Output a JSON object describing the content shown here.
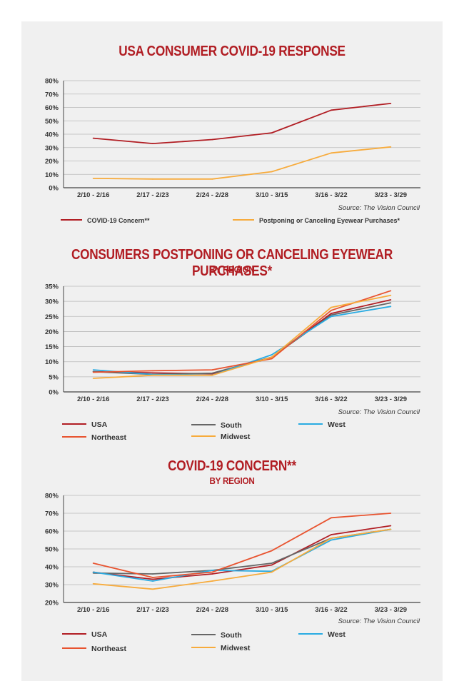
{
  "chart_data": [
    {
      "type": "line",
      "title": "USA CONSUMER COVID-19 RESPONSE",
      "categories": [
        "2/10 - 2/16",
        "2/17 - 2/23",
        "2/24 - 2/28",
        "3/10 - 3/15",
        "3/16 - 3/22",
        "3/23 - 3/29"
      ],
      "ylim": [
        0,
        80
      ],
      "yticks": [
        "0%",
        "10%",
        "20%",
        "30%",
        "40%",
        "50%",
        "60%",
        "70%",
        "80%"
      ],
      "ytick_values": [
        0,
        10,
        20,
        30,
        40,
        50,
        60,
        70,
        80
      ],
      "grid": true,
      "source": "Source: The Vision Council",
      "series": [
        {
          "name": "COVID-19 Concern**",
          "color": "#b11d23",
          "values": [
            37,
            33,
            36,
            41,
            58,
            63
          ]
        },
        {
          "name": "Postponing or Canceling Eyewear Purchases*",
          "color": "#f7ab3c",
          "values": [
            7,
            6.5,
            6.5,
            12,
            26,
            30.5
          ]
        }
      ]
    },
    {
      "type": "line",
      "title": "CONSUMERS POSTPONING OR CANCELING EYEWEAR PURCHASES*",
      "subtitle": "BY REGION",
      "categories": [
        "2/10 - 2/16",
        "2/17 - 2/23",
        "2/24 - 2/28",
        "3/10 - 3/15",
        "3/16 - 3/22",
        "3/23 - 3/29"
      ],
      "ylim": [
        0,
        35
      ],
      "yticks": [
        "0%",
        "5%",
        "10%",
        "15%",
        "20%",
        "25%",
        "30%",
        "35%"
      ],
      "ytick_values": [
        0,
        5,
        10,
        15,
        20,
        25,
        30,
        35
      ],
      "grid": true,
      "source": "Source: The Vision Council",
      "series": [
        {
          "name": "USA",
          "color": "#b11d23",
          "values": [
            6.7,
            6.3,
            6.0,
            11.5,
            26.0,
            30.5
          ]
        },
        {
          "name": "South",
          "color": "#666666",
          "values": [
            6.7,
            5.8,
            6.2,
            11.5,
            25.5,
            29.5
          ]
        },
        {
          "name": "West",
          "color": "#29abe2",
          "values": [
            7.3,
            5.8,
            5.5,
            12.3,
            25.0,
            28.3
          ]
        },
        {
          "name": "Northeast",
          "color": "#e8532f",
          "values": [
            6.5,
            7.0,
            7.3,
            11.0,
            27.0,
            33.5
          ]
        },
        {
          "name": "Midwest",
          "color": "#f7ab3c",
          "values": [
            4.5,
            5.5,
            5.5,
            11.5,
            28.0,
            32.0
          ]
        }
      ]
    },
    {
      "type": "line",
      "title": "COVID-19 CONCERN**",
      "subtitle": "BY REGION",
      "categories": [
        "2/10 - 2/16",
        "2/17 - 2/23",
        "2/24 - 2/28",
        "3/10 - 3/15",
        "3/16 - 3/22",
        "3/23 - 3/29"
      ],
      "ylim": [
        20,
        80
      ],
      "yticks": [
        "20%",
        "30%",
        "40%",
        "50%",
        "60%",
        "70%",
        "80%"
      ],
      "ytick_values": [
        20,
        30,
        40,
        50,
        60,
        70,
        80
      ],
      "grid": true,
      "source": "Source: The Vision Council",
      "series": [
        {
          "name": "USA",
          "color": "#b11d23",
          "values": [
            37,
            33,
            36,
            41,
            58,
            63
          ]
        },
        {
          "name": "South",
          "color": "#666666",
          "values": [
            36.5,
            36,
            38,
            42,
            56,
            61
          ]
        },
        {
          "name": "West",
          "color": "#29abe2",
          "values": [
            37,
            32,
            38,
            37.5,
            55,
            61
          ]
        },
        {
          "name": "Northeast",
          "color": "#e8532f",
          "values": [
            42,
            34,
            37,
            49,
            67.5,
            70
          ]
        },
        {
          "name": "Midwest",
          "color": "#f7ab3c",
          "values": [
            30.5,
            27.5,
            32,
            37,
            56,
            61
          ]
        }
      ]
    }
  ]
}
